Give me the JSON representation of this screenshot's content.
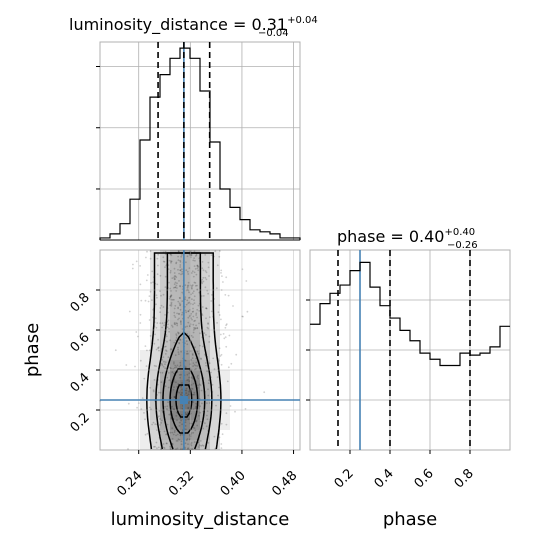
{
  "chart_data": {
    "type": "corner",
    "parameters": [
      "luminosity_distance",
      "phase"
    ],
    "titles": {
      "luminosity_distance": {
        "name": "luminosity_distance",
        "value": "0.31",
        "plus": "+0.04",
        "minus": "−0.04"
      },
      "phase": {
        "name": "phase",
        "value": "0.40",
        "plus": "+0.40",
        "minus": "−0.26"
      }
    },
    "axis_labels": {
      "x1": "luminosity_distance",
      "x2": "phase",
      "y": "phase"
    },
    "ticks": {
      "luminosity_distance": [
        "0.24",
        "0.32",
        "0.40",
        "0.48"
      ],
      "phase": [
        "0.2",
        "0.4",
        "0.6",
        "0.8"
      ]
    },
    "ranges": {
      "luminosity_distance": [
        0.18,
        0.49
      ],
      "phase": [
        0.0,
        1.0
      ]
    },
    "truths": {
      "luminosity_distance": 0.31,
      "phase": 0.25
    },
    "quantiles": {
      "luminosity_distance": [
        0.27,
        0.31,
        0.35
      ],
      "phase": [
        0.14,
        0.4,
        0.8
      ]
    },
    "hist_luminosity_distance": {
      "bin_edges": [
        0.18,
        0.1955,
        0.211,
        0.2265,
        0.242,
        0.2575,
        0.273,
        0.2885,
        0.304,
        0.3195,
        0.335,
        0.3505,
        0.366,
        0.3815,
        0.397,
        0.4125,
        0.428,
        0.4435,
        0.459,
        0.4745,
        0.49
      ],
      "counts": [
        0.01,
        0.03,
        0.08,
        0.2,
        0.49,
        0.7,
        0.81,
        0.89,
        0.94,
        0.89,
        0.73,
        0.48,
        0.25,
        0.16,
        0.1,
        0.05,
        0.04,
        0.03,
        0.01,
        0.01
      ]
    },
    "hist_phase": {
      "bin_edges": [
        0,
        0.05,
        0.1,
        0.15,
        0.2,
        0.25,
        0.3,
        0.35,
        0.4,
        0.45,
        0.5,
        0.55,
        0.6,
        0.65,
        0.7,
        0.75,
        0.8,
        0.85,
        0.9,
        0.95,
        1.0
      ],
      "counts": [
        0.61,
        0.71,
        0.76,
        0.8,
        0.87,
        0.91,
        0.79,
        0.7,
        0.64,
        0.58,
        0.53,
        0.47,
        0.44,
        0.41,
        0.41,
        0.47,
        0.46,
        0.47,
        0.5,
        0.6
      ]
    },
    "density_2d": {
      "x_edges": [
        0.18,
        0.1955,
        0.211,
        0.2265,
        0.242,
        0.2575,
        0.273,
        0.2885,
        0.304,
        0.3195,
        0.335,
        0.3505,
        0.366,
        0.3815,
        0.397,
        0.4125,
        0.428,
        0.4435,
        0.459,
        0.4745,
        0.49
      ],
      "y_edges": [
        0,
        0.05,
        0.1,
        0.15,
        0.2,
        0.25,
        0.3,
        0.35,
        0.4,
        0.45,
        0.5,
        0.55,
        0.6,
        0.65,
        0.7,
        0.75,
        0.8,
        0.85,
        0.9,
        0.95,
        1.0
      ],
      "peak": {
        "x": 0.32,
        "y": 0.25
      }
    }
  },
  "style": {
    "truth_color": "#4682b4",
    "line_color": "#000000",
    "grid_color": "#b0b0b0",
    "density_color": "#000000"
  }
}
